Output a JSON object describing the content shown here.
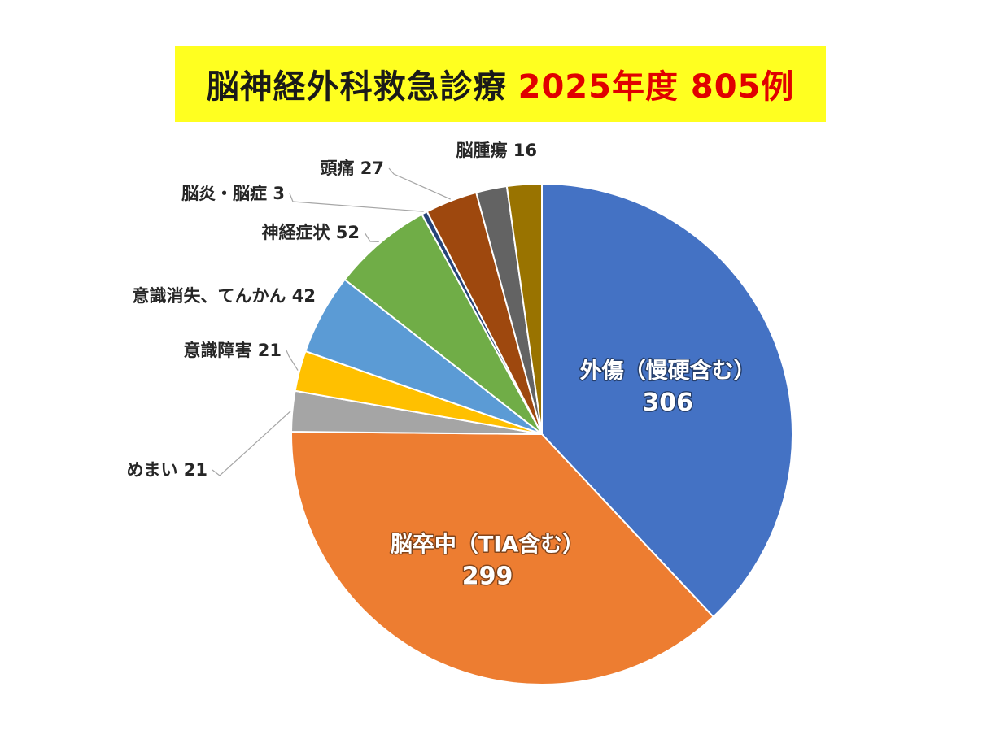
{
  "title": {
    "main": "脳神経外科救急診療",
    "highlight": "2025年度 805例"
  },
  "colors": {
    "title_background": "#ffff20",
    "title_highlight": "#e00000"
  },
  "chart_data": {
    "type": "pie",
    "title": "脳神経外科救急診療 2025年度 805例",
    "total": 805,
    "start_angle_deg": 0,
    "direction": "clockwise",
    "slices": [
      {
        "label": "外傷（慢硬含む）",
        "value": 306,
        "color": "#4472c4",
        "label_position": "inside"
      },
      {
        "label": "脳卒中（TIA含む）",
        "value": 299,
        "color": "#ed7d31",
        "label_position": "inside"
      },
      {
        "label": "めまい",
        "value": 21,
        "color": "#a5a5a5",
        "label_position": "outside"
      },
      {
        "label": "意識障害",
        "value": 21,
        "color": "#ffc000",
        "label_position": "outside"
      },
      {
        "label": "意識消失、てんかん",
        "value": 42,
        "color": "#5b9bd5",
        "label_position": "outside"
      },
      {
        "label": "神経症状",
        "value": 52,
        "color": "#70ad47",
        "label_position": "outside"
      },
      {
        "label": "脳炎・脳症",
        "value": 3,
        "color": "#264478",
        "label_position": "outside"
      },
      {
        "label": "頭痛",
        "value": 27,
        "color": "#9e480e",
        "label_position": "outside"
      },
      {
        "label": "脳腫瘍",
        "value": 16,
        "color": "#636363",
        "label_position": "outside"
      },
      {
        "label": "",
        "value": 18,
        "color": "#997300",
        "label_position": "none"
      }
    ]
  }
}
